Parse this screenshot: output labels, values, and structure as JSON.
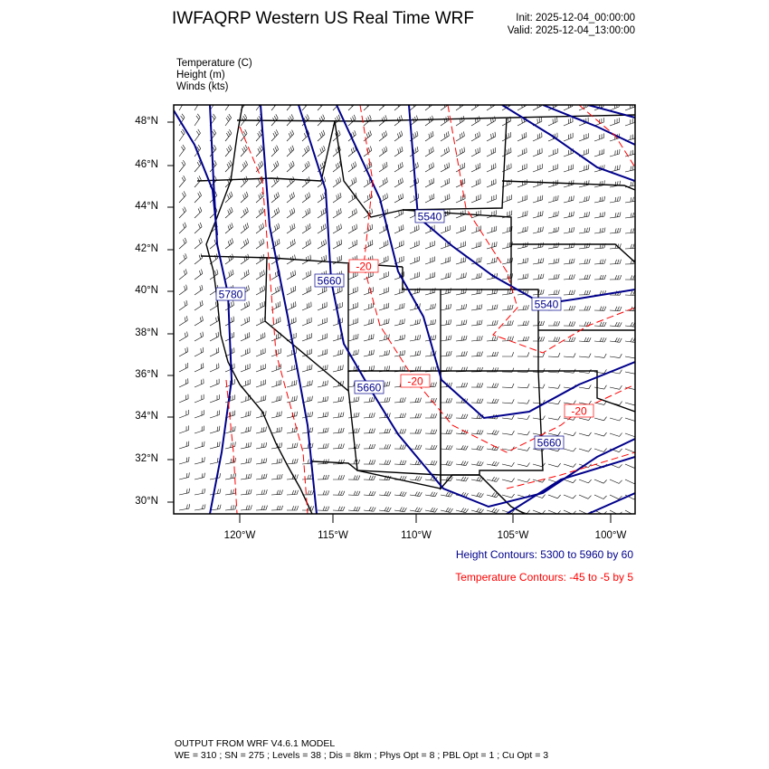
{
  "header": {
    "title": "IWFAQRP Western US Real Time WRF",
    "init": "Init: 2025-12-04_00:00:00",
    "valid": "Valid: 2025-12-04_13:00:00"
  },
  "fields": [
    "Temperature   (C)",
    "Height   (m)",
    "Winds   (kts)"
  ],
  "map": {
    "lat_labels": [
      "48°N",
      "46°N",
      "44°N",
      "42°N",
      "40°N",
      "38°N",
      "36°N",
      "34°N",
      "32°N",
      "30°N"
    ],
    "lon_labels": [
      "120°W",
      "115°W",
      "110°W",
      "105°W",
      "100°W"
    ],
    "height_labels": [
      "5780",
      "5660",
      "5540",
      "5660",
      "5540",
      "5660"
    ],
    "temp_labels": [
      "-20",
      "-20",
      "-20"
    ],
    "colors": {
      "height": "#00008b",
      "temperature": "#ff0000",
      "borders": "#000000",
      "barbs": "#000000"
    }
  },
  "legend": {
    "height": "Height Contours: 5300 to 5960 by 60",
    "temperature": "Temperature Contours: -45 to -5 by 5"
  },
  "footer": {
    "line1": "OUTPUT FROM WRF V4.6.1 MODEL",
    "line2": "WE = 310 ; SN = 275 ; Levels = 38 ; Dis = 8km ; Phys Opt = 8 ; PBL Opt = 1 ; Cu Opt = 3"
  }
}
